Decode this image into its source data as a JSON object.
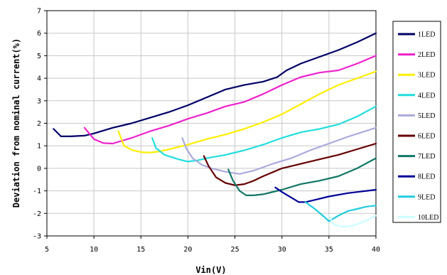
{
  "chart_data": {
    "type": "line",
    "xlabel": "Vin(V)",
    "ylabel": "Deviation from nominal current(%)",
    "xlim": [
      5,
      40
    ],
    "ylim": [
      -3,
      7
    ],
    "xticks": [
      "5",
      "10",
      "15",
      "20",
      "25",
      "30",
      "35",
      "40"
    ],
    "yticks": [
      "-3",
      "-2",
      "-1",
      "0",
      "1",
      "2",
      "3",
      "4",
      "5",
      "6",
      "7"
    ],
    "grid": true,
    "legend_position": "right",
    "series": [
      {
        "name": "1LED",
        "color": "#000066",
        "x": [
          5.7,
          6.5,
          7.5,
          9,
          10,
          12,
          14,
          16,
          18,
          20,
          22,
          24,
          26,
          28,
          29.5,
          30.5,
          32,
          34,
          36,
          38,
          40
        ],
        "y": [
          1.75,
          1.42,
          1.42,
          1.45,
          1.55,
          1.8,
          2.0,
          2.25,
          2.5,
          2.8,
          3.15,
          3.5,
          3.7,
          3.85,
          4.05,
          4.35,
          4.65,
          4.95,
          5.25,
          5.6,
          6.0
        ]
      },
      {
        "name": "2LED",
        "color": "#ee22cc",
        "x": [
          9,
          10,
          11,
          12,
          14,
          16,
          18,
          20,
          22,
          24,
          26,
          28,
          30,
          32,
          34,
          36,
          38,
          40
        ],
        "y": [
          1.8,
          1.3,
          1.12,
          1.1,
          1.35,
          1.65,
          1.9,
          2.2,
          2.45,
          2.75,
          2.95,
          3.3,
          3.7,
          4.05,
          4.25,
          4.35,
          4.65,
          5.0
        ]
      },
      {
        "name": "3LED",
        "color": "#ffee00",
        "x": [
          12.6,
          13.2,
          14,
          15,
          16,
          17,
          18,
          20,
          22,
          24,
          26,
          28,
          30,
          32,
          34,
          36,
          38,
          40
        ],
        "y": [
          1.65,
          1.0,
          0.82,
          0.72,
          0.7,
          0.75,
          0.85,
          1.05,
          1.3,
          1.5,
          1.75,
          2.05,
          2.4,
          2.85,
          3.3,
          3.7,
          4.0,
          4.3
        ]
      },
      {
        "name": "4LED",
        "color": "#22dddd",
        "x": [
          16.2,
          16.6,
          17.5,
          19,
          20,
          21,
          22,
          24,
          26,
          28,
          30,
          32,
          34,
          36,
          38,
          40
        ],
        "y": [
          1.35,
          0.9,
          0.6,
          0.4,
          0.3,
          0.35,
          0.45,
          0.6,
          0.8,
          1.05,
          1.35,
          1.6,
          1.75,
          1.95,
          2.3,
          2.75
        ]
      },
      {
        "name": "5LED",
        "color": "#aaaadd",
        "x": [
          19.4,
          19.8,
          20.5,
          21.5,
          22.5,
          24,
          25.5,
          27,
          29,
          31,
          33,
          35,
          37,
          40
        ],
        "y": [
          1.35,
          0.9,
          0.45,
          0.15,
          0.0,
          -0.15,
          -0.25,
          -0.1,
          0.2,
          0.45,
          0.8,
          1.1,
          1.4,
          1.8
        ]
      },
      {
        "name": "6LED",
        "color": "#660000",
        "x": [
          21.7,
          22.2,
          23,
          24,
          25,
          26,
          27,
          28,
          30,
          32,
          34,
          36,
          38,
          40
        ],
        "y": [
          0.55,
          0.1,
          -0.4,
          -0.65,
          -0.75,
          -0.7,
          -0.55,
          -0.35,
          0.0,
          0.2,
          0.4,
          0.6,
          0.85,
          1.1
        ]
      },
      {
        "name": "7LED",
        "color": "#117766",
        "x": [
          24.3,
          24.8,
          25.5,
          26.2,
          27,
          28,
          30,
          32,
          34,
          36,
          38,
          40
        ],
        "y": [
          -0.05,
          -0.55,
          -1.0,
          -1.2,
          -1.2,
          -1.15,
          -0.95,
          -0.7,
          -0.55,
          -0.35,
          0.0,
          0.45
        ]
      },
      {
        "name": "8LED",
        "color": "#000099",
        "x": [
          29.3,
          30,
          31,
          31.8,
          32.5,
          33.5,
          35,
          37,
          39,
          40
        ],
        "y": [
          -0.85,
          -1.05,
          -1.3,
          -1.5,
          -1.5,
          -1.4,
          -1.25,
          -1.1,
          -1.0,
          -0.95
        ]
      },
      {
        "name": "9LED",
        "color": "#22ccdd",
        "x": [
          32.5,
          33.5,
          34.5,
          35,
          36,
          37,
          38,
          39,
          40
        ],
        "y": [
          -1.5,
          -1.8,
          -2.15,
          -2.35,
          -2.1,
          -1.9,
          -1.8,
          -1.7,
          -1.65
        ]
      },
      {
        "name": "10LED",
        "color": "#ccffff",
        "x": [
          35,
          35.5,
          36.5,
          37.5,
          38.5,
          39.3,
          40
        ],
        "y": [
          -2.1,
          -2.5,
          -2.6,
          -2.55,
          -2.4,
          -2.25,
          -2.1
        ]
      }
    ]
  }
}
